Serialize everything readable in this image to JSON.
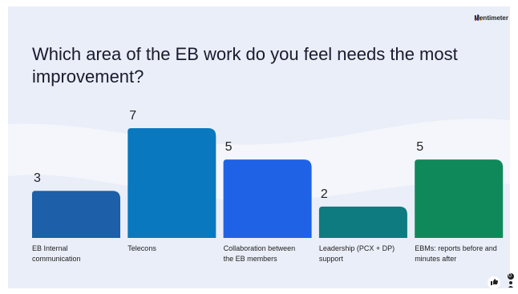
{
  "brand": "Mentimeter",
  "participants": 0,
  "chart_data": {
    "type": "bar",
    "title": "Which area of the EB work do you feel needs the most improvement?",
    "categories": [
      "EB Internal communication",
      "Telecons",
      "Collaboration between the EB members",
      "Leadership (PCX + DP) support",
      "EBMs: reports before and minutes after"
    ],
    "values": [
      3,
      7,
      5,
      2,
      5
    ],
    "colors": [
      "#1d5fa8",
      "#0a78be",
      "#1f62e6",
      "#0d7b80",
      "#10895a"
    ]
  }
}
